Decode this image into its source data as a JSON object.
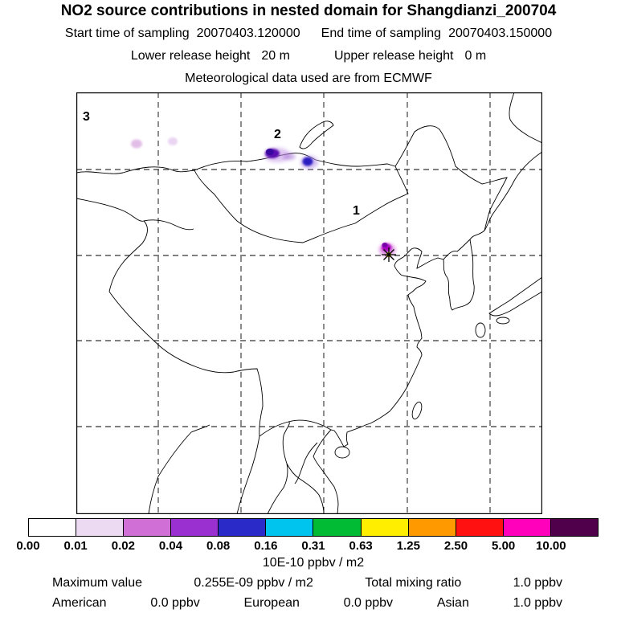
{
  "header": {
    "title": "NO2 source contributions in nested domain for Shangdianzi_200704",
    "start_label": "Start time of sampling",
    "start_value": "20070403.120000",
    "end_label": "End time of sampling",
    "end_value": "20070403.150000",
    "lower_label": "Lower release height",
    "lower_value": "20 m",
    "upper_label": "Upper release height",
    "upper_value": "0 m",
    "met_source": "Meteorological data used are from ECMWF"
  },
  "map": {
    "label_region1": "1",
    "label_region2": "2",
    "label_region3": "3"
  },
  "colorbar": {
    "ticks": [
      "0.00",
      "0.01",
      "0.02",
      "0.04",
      "0.08",
      "0.16",
      "0.31",
      "0.63",
      "1.25",
      "2.50",
      "5.00",
      "10.00"
    ],
    "colors": [
      "#ffffff",
      "#ecd9f2",
      "#d06fd6",
      "#9b30d0",
      "#2a2ac8",
      "#00c4ee",
      "#00bb33",
      "#ffee00",
      "#ff9900",
      "#ff1111",
      "#ff00bb",
      "#50004a"
    ],
    "units": "10E-10 ppbv / m2"
  },
  "footer": {
    "max_label": "Maximum value",
    "max_value": "0.255E-09 ppbv / m2",
    "total_label": "Total mixing ratio",
    "total_value": "1.0 ppbv",
    "contrib": [
      {
        "name": "American",
        "value": "0.0 ppbv"
      },
      {
        "name": "European",
        "value": "0.0 ppbv"
      },
      {
        "name": "Asian",
        "value": "1.0 ppbv"
      }
    ]
  },
  "chart_data": {
    "type": "heatmap",
    "title": "NO2 source contributions in nested domain for Shangdianzi_200704",
    "subtitle_lines": [
      "Start time of sampling 20070403.120000",
      "End time of sampling 20070403.150000",
      "Lower release height 20 m",
      "Upper release height 0 m",
      "Meteorological data used are from ECMWF"
    ],
    "colorbar": {
      "ticks": [
        0.0,
        0.01,
        0.02,
        0.04,
        0.08,
        0.16,
        0.31,
        0.63,
        1.25,
        2.5,
        5.0,
        10.0
      ],
      "units": "10E-10 ppbv / m2",
      "scale": "logarithmic",
      "colors": [
        "#ffffff",
        "#ecd9f2",
        "#d06fd6",
        "#9b30d0",
        "#2a2ac8",
        "#00c4ee",
        "#00bb33",
        "#ffee00",
        "#ff9900",
        "#ff1111",
        "#ff00bb",
        "#50004a"
      ]
    },
    "region_markers": [
      {
        "label": "3",
        "location": "northwest of domain"
      },
      {
        "label": "2",
        "location": "south of Lake Baikal"
      },
      {
        "label": "1",
        "location": "north of receptor, Inner Mongolia"
      }
    ],
    "hotspots": [
      {
        "near_label": "2",
        "intensity_color": "dark violet-blue",
        "approx_value_ppbv_m2": "0.08-0.16e-10"
      },
      {
        "near_label": "2 east",
        "intensity_color": "blue with violet halo",
        "approx_value_ppbv_m2": "0.08e-10"
      },
      {
        "near_label": "3",
        "intensity_color": "faint pale violet",
        "approx_value_ppbv_m2": "0.01e-10"
      },
      {
        "near_label": "receptor",
        "intensity_color": "magenta/violet at star marker",
        "approx_value_ppbv_m2": "0.02-0.04e-10"
      }
    ],
    "stats": {
      "maximum_value": "0.255E-09 ppbv / m2",
      "total_mixing_ratio": "1.0 ppbv",
      "american": "0.0 ppbv",
      "european": "0.0 ppbv",
      "asian": "1.0 ppbv"
    }
  }
}
